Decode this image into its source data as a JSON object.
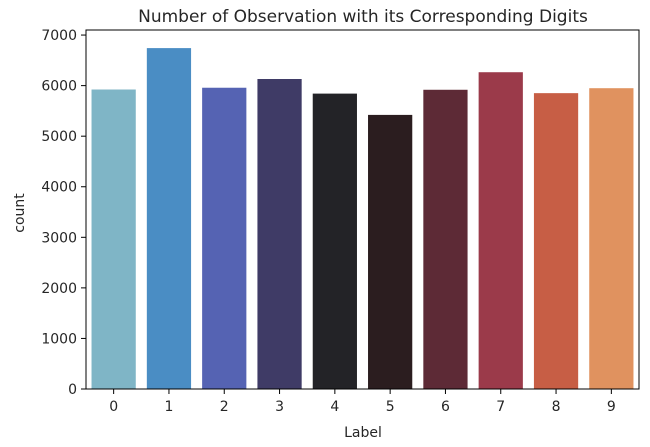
{
  "chart_data": {
    "type": "bar",
    "title": "Number of Observation with its Corresponding Digits",
    "xlabel": "Label",
    "ylabel": "count",
    "categories": [
      "0",
      "1",
      "2",
      "3",
      "4",
      "5",
      "6",
      "7",
      "8",
      "9"
    ],
    "values": [
      5923,
      6742,
      5958,
      6131,
      5842,
      5421,
      5918,
      6265,
      5851,
      5949
    ],
    "ylim": [
      0,
      7100
    ],
    "yticks": [
      0,
      1000,
      2000,
      3000,
      4000,
      5000,
      6000,
      7000
    ],
    "grid": false,
    "colors": [
      "#7fb5c6",
      "#4a8dc4",
      "#5563b3",
      "#3f3b66",
      "#232327",
      "#2b1d1f",
      "#5d2a36",
      "#9b3a4a",
      "#c75e45",
      "#e0925f"
    ]
  }
}
